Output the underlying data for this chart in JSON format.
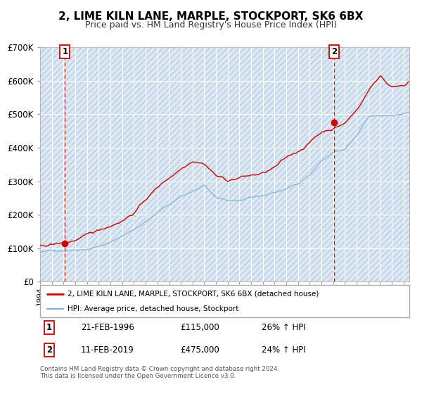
{
  "title": "2, LIME KILN LANE, MARPLE, STOCKPORT, SK6 6BX",
  "subtitle": "Price paid vs. HM Land Registry's House Price Index (HPI)",
  "ylim": [
    0,
    700000
  ],
  "yticks": [
    0,
    100000,
    200000,
    300000,
    400000,
    500000,
    600000,
    700000
  ],
  "ytick_labels": [
    "£0",
    "£100K",
    "£200K",
    "£300K",
    "£400K",
    "£500K",
    "£600K",
    "£700K"
  ],
  "xlim_start": 1994.0,
  "xlim_end": 2025.5,
  "background_color": "#ffffff",
  "plot_bg_color": "#dce9f5",
  "hatch_color": "#b8ccdf",
  "grid_color": "#ffffff",
  "red_line_color": "#cc0000",
  "blue_line_color": "#7bafd4",
  "marker1_date": 1996.125,
  "marker1_value": 115000,
  "marker2_date": 2019.1,
  "marker2_value": 475000,
  "vline1_x": 1996.125,
  "vline2_x": 2019.1,
  "legend_line1": "2, LIME KILN LANE, MARPLE, STOCKPORT, SK6 6BX (detached house)",
  "legend_line2": "HPI: Average price, detached house, Stockport",
  "table_row1": [
    "1",
    "21-FEB-1996",
    "£115,000",
    "26% ↑ HPI"
  ],
  "table_row2": [
    "2",
    "11-FEB-2019",
    "£475,000",
    "24% ↑ HPI"
  ],
  "footer": "Contains HM Land Registry data © Crown copyright and database right 2024.\nThis data is licensed under the Open Government Licence v3.0.",
  "title_fontsize": 11,
  "subtitle_fontsize": 9
}
